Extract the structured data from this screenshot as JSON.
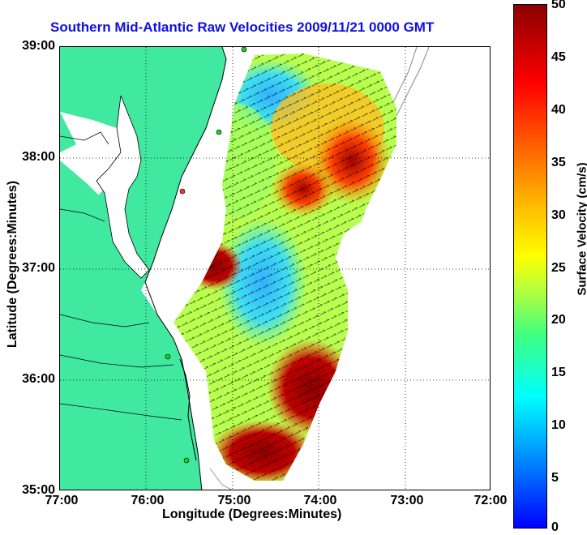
{
  "title": "Southern Mid-Atlantic Raw Velocities 2009/11/21 0000 GMT",
  "x_axis": {
    "label": "Longitude (Degrees:Minutes)",
    "ticks": [
      "77:00",
      "76:00",
      "75:00",
      "74:00",
      "73:00",
      "72:00"
    ]
  },
  "y_axis": {
    "label": "Latitude (Degrees:Minutes)",
    "ticks": [
      "39:00",
      "38:00",
      "37:00",
      "36:00",
      "35:00"
    ]
  },
  "colorbar": {
    "label": "Surface Velocity (cm/s)",
    "ticks": [
      "50",
      "45",
      "40",
      "35",
      "30",
      "25",
      "20",
      "15",
      "10",
      "5",
      "0"
    ]
  },
  "colors": {
    "land": "#40e8a0",
    "title": "#1010e0",
    "coast": "#000000",
    "bathymetry": "#9a9a9a",
    "station": "#20d020"
  },
  "map": {
    "lon_range": [
      -77,
      -72
    ],
    "lat_range": [
      35,
      39
    ],
    "grid": true,
    "colormap": "jet",
    "velocity_range_cm_s": [
      0,
      50
    ]
  }
}
